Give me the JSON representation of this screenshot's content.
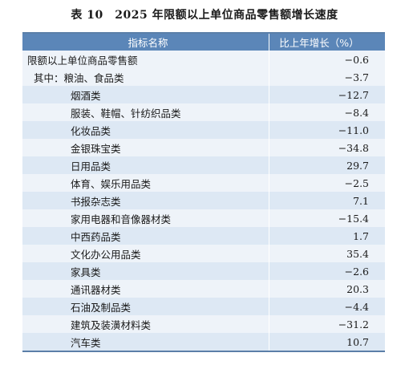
{
  "title": "表 10　2025 年限额以上单位商品零售额增长速度",
  "table": {
    "headers": [
      "指标名称",
      "比上年增长（%）"
    ],
    "rows": [
      {
        "name": "限额以上单位商品零售额",
        "value": "−0.6"
      },
      {
        "name": "其中：粮油、食品类",
        "value": "−3.7"
      },
      {
        "name": "烟酒类",
        "value": "−12.7"
      },
      {
        "name": "服装、鞋帽、针纺织品类",
        "value": "−8.4"
      },
      {
        "name": "化妆品类",
        "value": "−11.0"
      },
      {
        "name": "金银珠宝类",
        "value": "−34.8"
      },
      {
        "name": "日用品类",
        "value": "29.7"
      },
      {
        "name": "体育、娱乐用品类",
        "value": "−2.5"
      },
      {
        "name": "书报杂志类",
        "value": "7.1"
      },
      {
        "name": "家用电器和音像器材类",
        "value": "−15.4"
      },
      {
        "name": "中西药品类",
        "value": "1.7"
      },
      {
        "name": "文化办公用品类",
        "value": "35.4"
      },
      {
        "name": "家具类",
        "value": "−2.6"
      },
      {
        "name": "通讯器材类",
        "value": "20.3"
      },
      {
        "name": "石油及制品类",
        "value": "−4.4"
      },
      {
        "name": "建筑及装潢材料类",
        "value": "−31.2"
      },
      {
        "name": "汽车类",
        "value": "10.7"
      }
    ]
  }
}
